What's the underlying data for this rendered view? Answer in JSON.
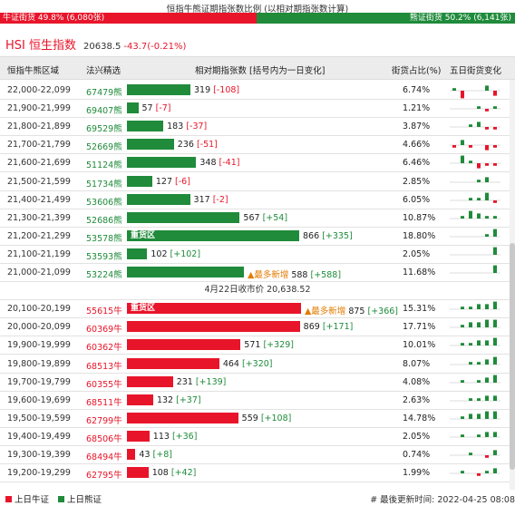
{
  "title": "恒指牛熊证期指张数比例 (以相对期指张数计算)",
  "ratio": {
    "bull_label": "牛证街货 49.8% (6,080张)",
    "bull_fraction": 0.498,
    "bear_label": "熊证街货 50.2% (6,141张)",
    "bear_fraction": 0.502
  },
  "hsi": {
    "name": "HSI 恒生指数",
    "price": "20638.5",
    "change": "-43.7(-0.21%)"
  },
  "headers": {
    "range": "恒指牛熊区域",
    "count": "法兴精选",
    "relative": "相对期指张数 [括号内为一日变化]",
    "pct": "街货占比(%)",
    "five_day": "五日街货变化"
  },
  "bear_rows": [
    {
      "range": "22,000-22,099",
      "count": "67479熊",
      "value": 319,
      "change": "[-108]",
      "pct": "6.74%",
      "spark": [
        1,
        -3,
        0,
        0,
        2,
        -2
      ]
    },
    {
      "range": "21,900-21,999",
      "count": "69407熊",
      "value": 57,
      "change": "[-7]",
      "pct": "1.21%",
      "spark": [
        0,
        0,
        0,
        1,
        -1,
        1
      ]
    },
    {
      "range": "21,800-21,899",
      "count": "69529熊",
      "value": 183,
      "change": "[-37]",
      "pct": "3.87%",
      "spark": [
        0,
        0,
        1,
        2,
        -1,
        -1
      ]
    },
    {
      "range": "21,700-21,799",
      "count": "52669熊",
      "value": 236,
      "change": "[-51]",
      "pct": "4.66%",
      "spark": [
        -1,
        2,
        -1,
        0,
        -2,
        -1
      ]
    },
    {
      "range": "21,600-21,699",
      "count": "51124熊",
      "value": 348,
      "change": "[-41]",
      "pct": "6.46%",
      "spark": [
        0,
        3,
        1,
        -2,
        -1,
        -1
      ]
    },
    {
      "range": "21,500-21,599",
      "count": "51734熊",
      "value": 127,
      "change": "[-6]",
      "pct": "2.85%",
      "spark": [
        0,
        0,
        0,
        1,
        2,
        0
      ]
    },
    {
      "range": "21,400-21,499",
      "count": "53606熊",
      "value": 317,
      "change": "[-2]",
      "pct": "6.05%",
      "spark": [
        0,
        0,
        1,
        1,
        3,
        -1
      ]
    },
    {
      "range": "21,300-21,399",
      "count": "52686熊",
      "value": 567,
      "change": "[+54]",
      "pct": "10.87%",
      "spark": [
        0,
        1,
        3,
        2,
        1,
        1
      ]
    },
    {
      "range": "21,200-21,299",
      "count": "53578熊",
      "value": 866,
      "change": "[+335]",
      "pct": "18.80%",
      "tag": "重货区",
      "spark": [
        0,
        0,
        0,
        0,
        1,
        3
      ]
    },
    {
      "range": "21,100-21,199",
      "count": "53593熊",
      "value": 102,
      "change": "[+102]",
      "pct": "2.05%",
      "spark": [
        0,
        0,
        0,
        0,
        0,
        3
      ]
    },
    {
      "range": "21,000-21,099",
      "count": "53224熊",
      "value": 588,
      "change": "[+588]",
      "pct": "11.68%",
      "marker": "▲最多新增",
      "spark": [
        0,
        0,
        0,
        0,
        0,
        3
      ]
    }
  ],
  "mid_label": "4月22日收市价 20,638.52",
  "bull_rows": [
    {
      "range": "20,100-20,199",
      "count": "55615牛",
      "value": 875,
      "change": "[+366]",
      "pct": "15.31%",
      "tag": "重货区",
      "marker": "▲最多新增",
      "spark": [
        0,
        1,
        1,
        2,
        2,
        3
      ]
    },
    {
      "range": "20,000-20,099",
      "count": "60369牛",
      "value": 869,
      "change": "[+171]",
      "pct": "17.71%",
      "spark": [
        0,
        1,
        2,
        2,
        3,
        3
      ]
    },
    {
      "range": "19,900-19,999",
      "count": "60362牛",
      "value": 571,
      "change": "[+329]",
      "pct": "10.01%",
      "spark": [
        0,
        1,
        1,
        2,
        2,
        3
      ]
    },
    {
      "range": "19,800-19,899",
      "count": "68513牛",
      "value": 464,
      "change": "[+320]",
      "pct": "8.07%",
      "spark": [
        0,
        0,
        1,
        1,
        2,
        3
      ]
    },
    {
      "range": "19,700-19,799",
      "count": "60355牛",
      "value": 231,
      "change": "[+139]",
      "pct": "4.08%",
      "spark": [
        0,
        1,
        0,
        1,
        2,
        3
      ]
    },
    {
      "range": "19,600-19,699",
      "count": "68511牛",
      "value": 132,
      "change": "[+37]",
      "pct": "2.63%",
      "spark": [
        0,
        0,
        1,
        1,
        2,
        2
      ]
    },
    {
      "range": "19,500-19,599",
      "count": "62799牛",
      "value": 559,
      "change": "[+108]",
      "pct": "14.78%",
      "spark": [
        0,
        1,
        2,
        2,
        3,
        3
      ]
    },
    {
      "range": "19,400-19,499",
      "count": "68506牛",
      "value": 113,
      "change": "[+36]",
      "pct": "2.05%",
      "spark": [
        0,
        1,
        0,
        1,
        2,
        2
      ]
    },
    {
      "range": "19,300-19,399",
      "count": "68494牛",
      "value": 43,
      "change": "[+8]",
      "pct": "0.74%",
      "spark": [
        0,
        0,
        1,
        0,
        -1,
        2
      ]
    },
    {
      "range": "19,200-19,299",
      "count": "62795牛",
      "value": 108,
      "change": "[+42]",
      "pct": "1.99%",
      "spark": [
        0,
        1,
        0,
        -1,
        1,
        2
      ]
    }
  ],
  "bar_scale_max": 875,
  "legend": {
    "bull": "上日牛证",
    "bear": "上日熊证"
  },
  "updated": "# 最後更新时间: 2022-04-25 08:08",
  "colors": {
    "bull": "#e8152a",
    "bear": "#1f8b3b",
    "accent": "#e37b00"
  }
}
